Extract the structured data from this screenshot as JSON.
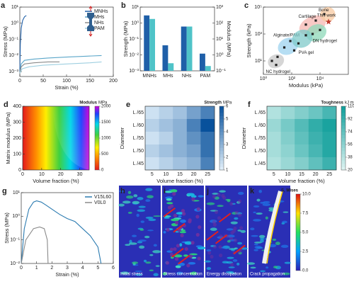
{
  "chart_data": [
    {
      "type": "line",
      "panel": "a",
      "xlabel": "Strain (%)",
      "ylabel": "Stress (MPa)",
      "xlim": [
        0,
        200
      ],
      "xticks": [
        0,
        50,
        100,
        150,
        200
      ],
      "yscale": "log",
      "ylim": [
        0.0005,
        10
      ],
      "yticks": [
        {
          "value": 0.001,
          "label": "10⁻³"
        },
        {
          "value": 0.01,
          "label": "10⁻²"
        },
        {
          "value": 0.1,
          "label": "10⁻¹"
        },
        {
          "value": 1,
          "label": "10⁰"
        },
        {
          "value": 10,
          "label": "10¹"
        }
      ],
      "legend": "upper right",
      "series": [
        {
          "name": "MNHs",
          "color": "#1f5fa8",
          "x": [
            0,
            1,
            3,
            6,
            10,
            14
          ],
          "values": [
            0.001,
            0.05,
            0.5,
            1.5,
            2.5,
            3
          ]
        },
        {
          "name": "MHs",
          "color": "#5aa6c9",
          "x": [
            0,
            3,
            10,
            30,
            60,
            100,
            140,
            175
          ],
          "values": [
            0.0008,
            0.003,
            0.005,
            0.006,
            0.007,
            0.008,
            0.009,
            0.01
          ]
        },
        {
          "name": "NHs",
          "color": "#8a8a8a",
          "x": [
            0,
            3,
            10,
            30,
            60,
            85
          ],
          "values": [
            0.0008,
            0.002,
            0.003,
            0.0035,
            0.004,
            0.004
          ]
        },
        {
          "name": "PAM",
          "color": "#9ecfe0",
          "x": [
            0,
            5,
            20,
            50,
            100,
            150,
            175
          ],
          "values": [
            0.0008,
            0.0015,
            0.002,
            0.0025,
            0.003,
            0.0035,
            0.004
          ]
        }
      ]
    },
    {
      "type": "bar",
      "panel": "b",
      "ylabel": "Strength (MPa)",
      "y2label": "Modulus (MPa)",
      "categories": [
        "MNHs",
        "MHs",
        "NHs",
        "PAM"
      ],
      "yscale": "log",
      "ylim": [
        0.001,
        10
      ],
      "yticks": [
        {
          "value": 0.001,
          "label": "10⁻³"
        },
        {
          "value": 0.01,
          "label": "10⁻²"
        },
        {
          "value": 0.1,
          "label": "10⁻¹"
        },
        {
          "value": 1,
          "label": "10⁰"
        },
        {
          "value": 10,
          "label": "10¹"
        }
      ],
      "y2scale": "log",
      "y2lim": [
        0.1,
        1000
      ],
      "y2ticks": [
        {
          "value": 0.1,
          "label": "10⁻¹"
        },
        {
          "value": 1,
          "label": "10⁰"
        },
        {
          "value": 10,
          "label": "10¹"
        },
        {
          "value": 100,
          "label": "10²"
        },
        {
          "value": 1000,
          "label": "10³"
        }
      ],
      "series": [
        {
          "color": "#1f5fa8",
          "values": [
            3,
            0.04,
            0.6,
            0.012
          ]
        },
        {
          "color": "#4fc3c8",
          "axis": "y2",
          "values": [
            180,
            0.3,
            60,
            0.2
          ]
        }
      ]
    },
    {
      "type": "scatter",
      "panel": "c",
      "xlabel": "Modulus (kPa)",
      "ylabel": "Strength (kPa)",
      "xscale": "log",
      "xlim": [
        1,
        1000000
      ],
      "xticks": [
        {
          "value": 1,
          "label": "10⁰"
        },
        {
          "value": 100,
          "label": "10²"
        },
        {
          "value": 10000,
          "label": "10⁴"
        }
      ],
      "yscale": "log",
      "ylim": [
        1,
        100000
      ],
      "yticks": [
        {
          "value": 10,
          "label": "10¹"
        },
        {
          "value": 1000,
          "label": "10³"
        },
        {
          "value": 100000,
          "label": "10⁵"
        }
      ],
      "annotations": [
        "Cartilage",
        "Bone",
        "Alginate/PAM",
        "DN hydrogel",
        "PVA gel",
        "NC hydrogel"
      ],
      "series": [
        {
          "color": "#222222",
          "x": [
            4,
            8,
            10,
            30,
            80,
            150,
            300,
            1000,
            3000,
            10000,
            1000,
            5000,
            20000
          ],
          "values": [
            10,
            5,
            20,
            100,
            300,
            60,
            200,
            800,
            1000,
            2000,
            5000,
            10000,
            30000
          ]
        },
        {
          "name": "This work",
          "color": "#c0392b",
          "marker": "star",
          "x": [
            40000
          ],
          "values": [
            8000
          ]
        }
      ]
    },
    {
      "type": "field",
      "panel": "d",
      "xlabel": "Volume fraction (%)",
      "ylabel": "Matrix modulus (MPa)",
      "xlim": [
        0,
        35
      ],
      "xticks": [
        0,
        10,
        20,
        30
      ],
      "ylim": [
        0,
        400
      ],
      "yticks": [
        0,
        100,
        200,
        300,
        400
      ],
      "colorbar": {
        "label": "Modulus",
        "unit": "MPa",
        "lim": [
          0,
          2000
        ],
        "ticks": [
          0,
          500,
          1000,
          1500,
          2000
        ]
      }
    },
    {
      "type": "heatmap",
      "panel": "e",
      "xlabel": "Volume fraction (%)",
      "ylabel": "Diameter",
      "categories": [
        "5",
        "10",
        "15",
        "20",
        "25"
      ],
      "rows": [
        "L /65",
        "L /60",
        "L /55",
        "L /50",
        "L /45"
      ],
      "values": [
        [
          1.5,
          2,
          2.5,
          3.5,
          4.5
        ],
        [
          2,
          2.5,
          3,
          4.5,
          6
        ],
        [
          1.5,
          2,
          3,
          4,
          5
        ],
        [
          2,
          2.5,
          3,
          3.5,
          5
        ],
        [
          1.5,
          2,
          2.5,
          3,
          4.5
        ]
      ],
      "colors": [
        "#e3f1fb",
        "#08519c"
      ],
      "colorbar": {
        "label": "Strength",
        "unit": "MPa",
        "lim": [
          1,
          6
        ],
        "ticks": [
          1,
          2,
          3,
          4,
          5,
          6
        ]
      }
    },
    {
      "type": "heatmap",
      "panel": "f",
      "xlabel": "Volume fraction (%)",
      "ylabel": "Diameter",
      "categories": [
        "5",
        "10",
        "15",
        "20",
        "25"
      ],
      "rows": [
        "L /65",
        "L /60",
        "L /55",
        "L /50",
        "L /45"
      ],
      "values": [
        [
          40,
          50,
          60,
          70,
          85
        ],
        [
          50,
          65,
          80,
          95,
          105
        ],
        [
          45,
          60,
          75,
          90,
          100
        ],
        [
          45,
          55,
          70,
          85,
          100
        ],
        [
          40,
          50,
          60,
          75,
          90
        ]
      ],
      "colors": [
        "#e0f5f3",
        "#0e9e9a"
      ],
      "colorbar": {
        "label": "Toughness",
        "unit": "kJ m⁻³",
        "lim": [
          20,
          110
        ],
        "ticks": [
          20,
          38,
          56,
          74,
          92,
          110
        ]
      }
    },
    {
      "type": "line",
      "panel": "g",
      "xlabel": "Strain (%)",
      "ylabel": "Stress (MPa)",
      "xlim": [
        0,
        6
      ],
      "xticks": [
        0,
        1,
        2,
        3,
        4,
        5,
        6
      ],
      "yscale": "log",
      "ylim": [
        0.01,
        10
      ],
      "yticks": [
        {
          "value": 0.01,
          "label": "10⁻²"
        },
        {
          "value": 0.1,
          "label": "10⁻¹"
        },
        {
          "value": 1,
          "label": "10⁰"
        },
        {
          "value": 10,
          "label": "10¹"
        }
      ],
      "legend": "upper right",
      "series": [
        {
          "name": "V15L60",
          "color": "#2a7ab0",
          "x": [
            0,
            0.2,
            0.5,
            0.8,
            1.0,
            1.3,
            1.6,
            2,
            2.5,
            3,
            3.5,
            4,
            4.5,
            5,
            5.2
          ],
          "values": [
            0.01,
            0.3,
            2,
            4,
            4.5,
            4,
            3,
            2,
            1.2,
            0.8,
            0.6,
            0.3,
            0.15,
            0.05,
            0.01
          ]
        },
        {
          "name": "V0L0",
          "color": "#8a8a8a",
          "x": [
            0,
            0.3,
            0.8,
            1.2,
            1.5,
            1.7,
            1.75
          ],
          "values": [
            0.01,
            0.1,
            0.3,
            0.35,
            0.3,
            0.1,
            0.01
          ]
        }
      ]
    },
    {
      "type": "contour",
      "panels": [
        "h",
        "i",
        "j",
        "k"
      ],
      "captions": [
        "Initial stress",
        "Stress concentration",
        "Energy dissipation",
        "Crack propagation"
      ],
      "colorbar": {
        "label": "S, Mises",
        "lim": [
          0,
          10
        ],
        "ticks": [
          {
            "value": 0,
            "label": "0.0"
          },
          {
            "value": 2.5,
            "label": "2.5"
          },
          {
            "value": 5,
            "label": "5.0"
          },
          {
            "value": 7.5,
            "label": "7.5"
          },
          {
            "value": 10,
            "label": "10.0"
          }
        ]
      }
    }
  ]
}
